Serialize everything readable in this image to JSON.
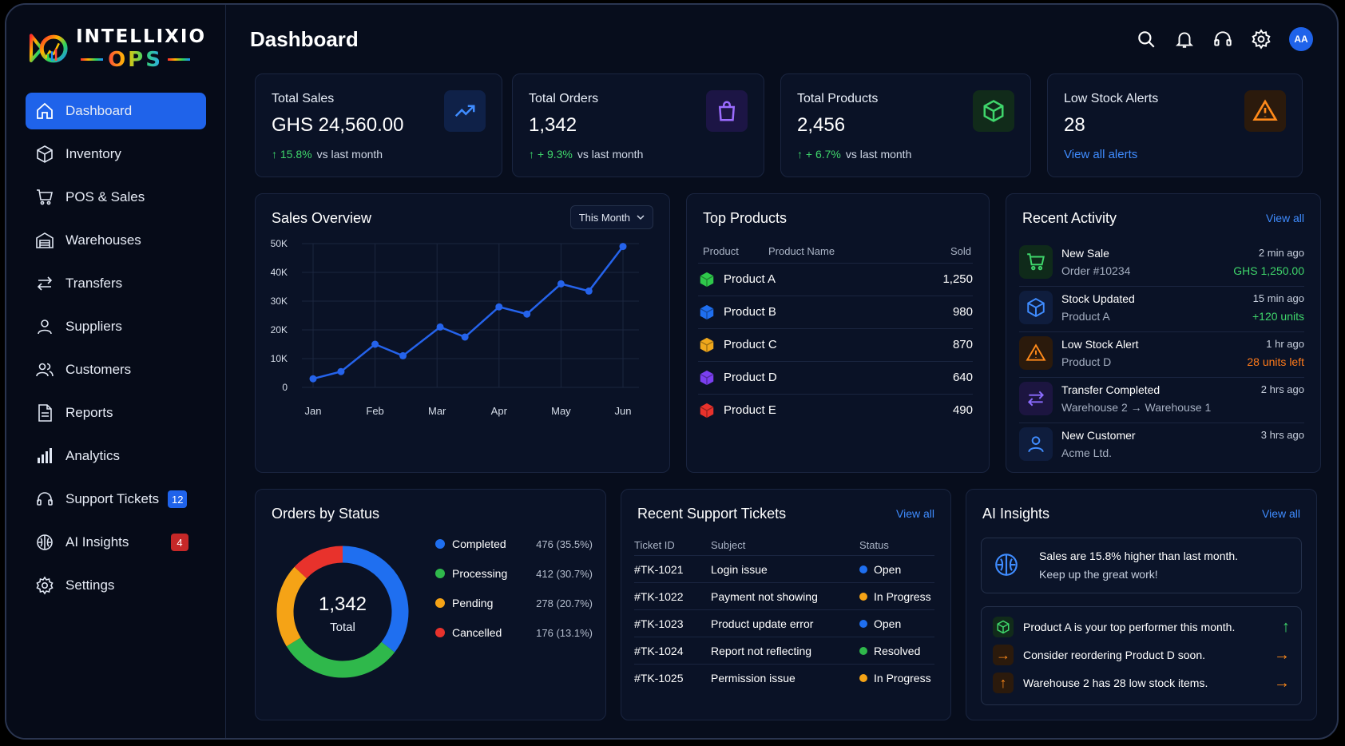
{
  "app": {
    "brand_top": "INTELLIXIO",
    "brand_bottom": "OPS",
    "page_title": "Dashboard",
    "avatar_initials": "AA"
  },
  "sidebar": {
    "items": [
      {
        "label": "Dashboard",
        "icon": "home-icon",
        "active": true
      },
      {
        "label": "Inventory",
        "icon": "box-icon"
      },
      {
        "label": "POS & Sales",
        "icon": "cart-icon"
      },
      {
        "label": "Warehouses",
        "icon": "warehouse-icon"
      },
      {
        "label": "Transfers",
        "icon": "transfer-icon"
      },
      {
        "label": "Suppliers",
        "icon": "user-icon"
      },
      {
        "label": "Customers",
        "icon": "users-icon"
      },
      {
        "label": "Reports",
        "icon": "document-icon"
      },
      {
        "label": "Analytics",
        "icon": "bar-chart-icon"
      },
      {
        "label": "Support Tickets",
        "icon": "headset-icon",
        "badge": "12"
      },
      {
        "label": "AI Insights",
        "icon": "brain-icon",
        "badge": "4"
      },
      {
        "label": "Settings",
        "icon": "gear-icon"
      }
    ]
  },
  "stats": [
    {
      "label": "Total Sales",
      "value": "GHS 24,560.00",
      "trend": "15.8%",
      "trend_suffix": "vs last month",
      "icon": "trend-up-icon"
    },
    {
      "label": "Total Orders",
      "value": "1,342",
      "trend": "+ 9.3%",
      "trend_suffix": "vs last month",
      "icon": "shopping-bag-icon"
    },
    {
      "label": "Total Products",
      "value": "2,456",
      "trend": "+ 6.7%",
      "trend_suffix": "vs last month",
      "icon": "cube-icon"
    },
    {
      "label": "Low Stock Alerts",
      "value": "28",
      "link": "View all alerts",
      "icon": "warning-icon"
    }
  ],
  "sales_overview": {
    "title": "Sales Overview",
    "period": "This Month"
  },
  "chart_data": {
    "type": "line",
    "title": "Sales Overview",
    "x": [
      "Jan",
      "Feb",
      "Mar",
      "Apr",
      "May",
      "Jun"
    ],
    "y_ticks": [
      "0",
      "10K",
      "20K",
      "30K",
      "40K",
      "50K"
    ],
    "ylim": [
      0,
      50000
    ],
    "points": [
      {
        "x": 0.0,
        "y": 3000
      },
      {
        "x": 0.45,
        "y": 5500
      },
      {
        "x": 1.0,
        "y": 15000
      },
      {
        "x": 1.45,
        "y": 11000
      },
      {
        "x": 2.05,
        "y": 21000
      },
      {
        "x": 2.45,
        "y": 17500
      },
      {
        "x": 3.0,
        "y": 28000
      },
      {
        "x": 3.45,
        "y": 25500
      },
      {
        "x": 4.0,
        "y": 36000
      },
      {
        "x": 4.45,
        "y": 33500
      },
      {
        "x": 5.0,
        "y": 49000
      }
    ],
    "grid": true,
    "color": "#2563eb"
  },
  "top_products": {
    "title": "Top Products",
    "headers": [
      "Product",
      "Product Name",
      "Sold"
    ],
    "rows": [
      {
        "name": "Product A",
        "sold": "1,250",
        "color": "#2fc84b"
      },
      {
        "name": "Product B",
        "sold": "980",
        "color": "#1f6ff0"
      },
      {
        "name": "Product C",
        "sold": "870",
        "color": "#f0a81c"
      },
      {
        "name": "Product D",
        "sold": "640",
        "color": "#7a3ff0"
      },
      {
        "name": "Product E",
        "sold": "490",
        "color": "#e8322c"
      }
    ]
  },
  "recent_activity": {
    "title": "Recent Activity",
    "view_all": "View all",
    "items": [
      {
        "title": "New Sale",
        "sub": "Order #10234",
        "time": "2 min ago",
        "extra": "GHS 1,250.00",
        "extra_color": "#3fd66b",
        "icon": "cart-icon",
        "icon_color": "#3fd66b",
        "bg": "#0f2a1a"
      },
      {
        "title": "Stock Updated",
        "sub": "Product A",
        "time": "15 min ago",
        "extra": "+120 units",
        "extra_color": "#3fd66b",
        "icon": "cube-icon",
        "icon_color": "#3f8cff",
        "bg": "#0f1d3d"
      },
      {
        "title": "Low Stock Alert",
        "sub": "Product D",
        "time": "1 hr ago",
        "extra": "28 units left",
        "extra_color": "#ff7a1a",
        "icon": "warning-icon",
        "icon_color": "#ff8a1a",
        "bg": "#2b1a0c"
      },
      {
        "title": "Transfer Completed",
        "sub": "Warehouse 2 → Warehouse 1",
        "time": "2 hrs ago",
        "extra": "",
        "extra_color": "#fff",
        "icon": "transfer-icon",
        "icon_color": "#8b6cff",
        "bg": "#1c1540"
      },
      {
        "title": "New Customer",
        "sub": "Acme Ltd.",
        "time": "3 hrs ago",
        "extra": "",
        "extra_color": "#fff",
        "icon": "user-icon",
        "icon_color": "#3f8cff",
        "bg": "#0f1d3d"
      }
    ]
  },
  "orders_by_status": {
    "title": "Orders by Status",
    "total": "1,342",
    "total_label": "Total",
    "segments": [
      {
        "label": "Completed",
        "value": "476 (35.5%)",
        "pct": 35.5,
        "color": "#1f6ff0"
      },
      {
        "label": "Processing",
        "value": "412 (30.7%)",
        "pct": 30.7,
        "color": "#2fb84b"
      },
      {
        "label": "Pending",
        "value": "278 (20.7%)",
        "pct": 20.7,
        "color": "#f5a316"
      },
      {
        "label": "Cancelled",
        "value": "176 (13.1%)",
        "pct": 13.1,
        "color": "#e8322c"
      }
    ]
  },
  "support_tickets": {
    "title": "Recent Support Tickets",
    "view_all": "View all",
    "headers": [
      "Ticket ID",
      "Subject",
      "Status"
    ],
    "rows": [
      {
        "id": "#TK-1021",
        "subject": "Login issue",
        "status": "Open",
        "color": "#1f6ff0"
      },
      {
        "id": "#TK-1022",
        "subject": "Payment not showing",
        "status": "In Progress",
        "color": "#f5a316"
      },
      {
        "id": "#TK-1023",
        "subject": "Product update error",
        "status": "Open",
        "color": "#1f6ff0"
      },
      {
        "id": "#TK-1024",
        "subject": "Report not reflecting",
        "status": "Resolved",
        "color": "#2fb84b"
      },
      {
        "id": "#TK-1025",
        "subject": "Permission issue",
        "status": "In Progress",
        "color": "#f5a316"
      }
    ]
  },
  "ai_insights": {
    "title": "AI Insights",
    "view_all": "View all",
    "highlight_line1": "Sales are 15.8% higher than last month.",
    "highlight_line2": "Keep up the great work!",
    "items": [
      {
        "text": "Product A is your top performer this month.",
        "icon": "cube-icon",
        "color": "#3fd66b",
        "arrow": "↑"
      },
      {
        "text": "Consider reordering Product D soon.",
        "icon": "arrow-right-icon",
        "color": "#ff8a1a",
        "arrow": "→"
      },
      {
        "text": "Warehouse 2 has 28 low stock items.",
        "icon": "arrow-up-icon",
        "color": "#ff8a1a",
        "arrow": "→"
      }
    ]
  }
}
